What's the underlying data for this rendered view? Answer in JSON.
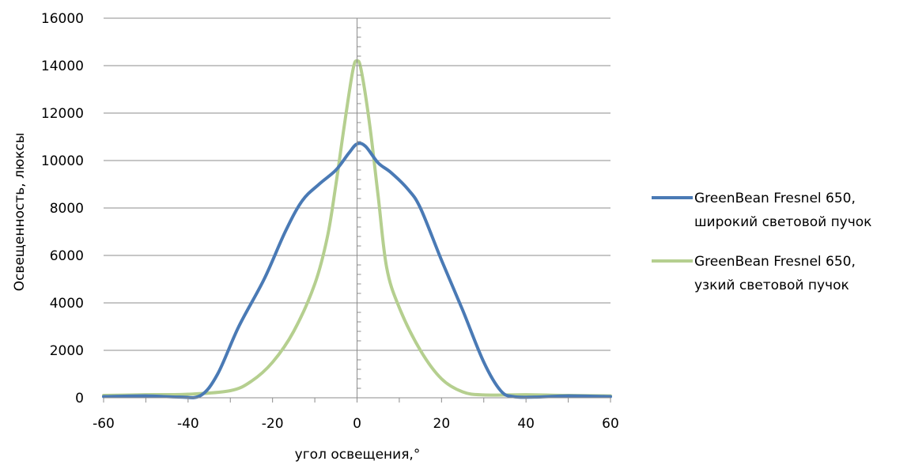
{
  "chart_data": {
    "type": "line",
    "title": "",
    "xlabel": "угол освещения,°",
    "ylabel": "Освещенность, люксы",
    "xlim": [
      -60,
      60
    ],
    "ylim": [
      0,
      16000
    ],
    "x_ticks": [
      -60,
      -40,
      -20,
      0,
      20,
      40,
      60
    ],
    "y_ticks": [
      0,
      2000,
      4000,
      6000,
      8000,
      10000,
      12000,
      14000,
      16000
    ],
    "grid": "horizontal",
    "legend_position": "right",
    "series": [
      {
        "name": "GreenBean Fresnel 650, широкий световой пучок",
        "legend_lines": [
          "GreenBean Fresnel 650,",
          "широкий световой пучок"
        ],
        "color": "#4a7ab5",
        "points": [
          [
            -60,
            50
          ],
          [
            -50,
            80
          ],
          [
            -42,
            30
          ],
          [
            -37,
            100
          ],
          [
            -33,
            1000
          ],
          [
            -28,
            3000
          ],
          [
            -22,
            5000
          ],
          [
            -17,
            7000
          ],
          [
            -13,
            8300
          ],
          [
            -9,
            9000
          ],
          [
            -5,
            9600
          ],
          [
            -2,
            10300
          ],
          [
            0,
            10700
          ],
          [
            2,
            10600
          ],
          [
            5,
            9900
          ],
          [
            8,
            9500
          ],
          [
            12,
            8800
          ],
          [
            15,
            8000
          ],
          [
            20,
            5800
          ],
          [
            25,
            3700
          ],
          [
            30,
            1500
          ],
          [
            34,
            300
          ],
          [
            37,
            50
          ],
          [
            42,
            30
          ],
          [
            50,
            80
          ],
          [
            60,
            50
          ]
        ]
      },
      {
        "name": "GreenBean Fresnel 650, узкий световой пучок",
        "legend_lines": [
          "GreenBean Fresnel 650,",
          "узкий световой пучок"
        ],
        "color": "#b5cf8f",
        "points": [
          [
            -60,
            100
          ],
          [
            -50,
            130
          ],
          [
            -40,
            150
          ],
          [
            -30,
            300
          ],
          [
            -25,
            700
          ],
          [
            -20,
            1500
          ],
          [
            -15,
            2800
          ],
          [
            -10,
            4800
          ],
          [
            -7,
            6800
          ],
          [
            -5,
            9000
          ],
          [
            -3,
            11500
          ],
          [
            -1,
            13800
          ],
          [
            0,
            14200
          ],
          [
            1,
            13800
          ],
          [
            3,
            11500
          ],
          [
            5,
            8500
          ],
          [
            7,
            5500
          ],
          [
            10,
            3800
          ],
          [
            15,
            2000
          ],
          [
            20,
            800
          ],
          [
            25,
            250
          ],
          [
            30,
            120
          ],
          [
            40,
            130
          ],
          [
            50,
            100
          ],
          [
            60,
            80
          ]
        ]
      }
    ]
  }
}
